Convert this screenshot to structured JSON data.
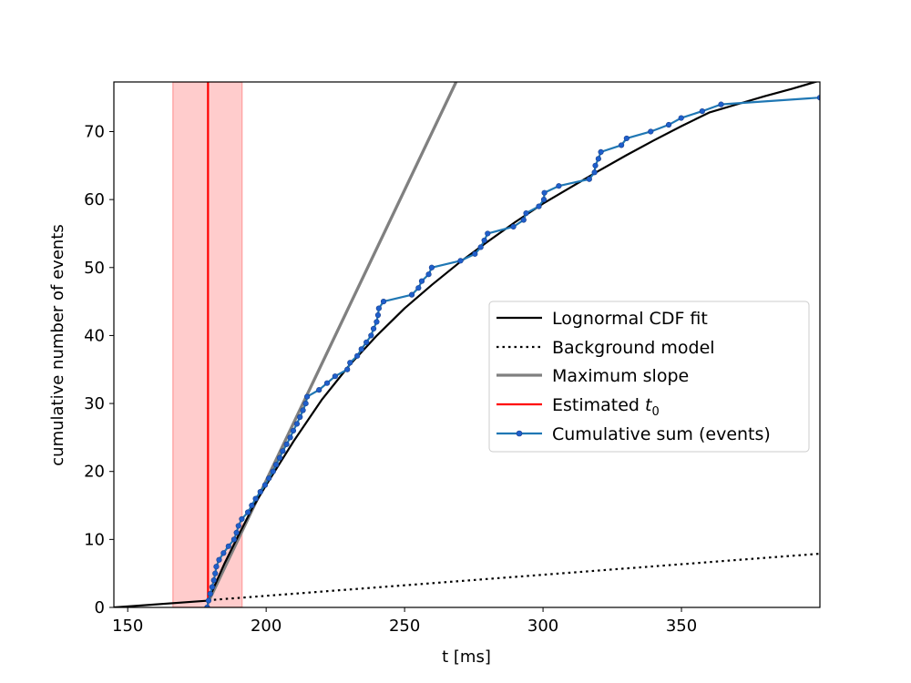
{
  "chart_data": {
    "type": "line",
    "xlabel": "t [ms]",
    "ylabel": "cumulative number of events",
    "xlim": [
      145,
      400
    ],
    "ylim": [
      0,
      77.3
    ],
    "x_ticks": [
      150,
      200,
      250,
      300,
      350
    ],
    "y_ticks": [
      0,
      10,
      20,
      30,
      40,
      50,
      60,
      70
    ],
    "legend_position": "center-right",
    "legend": [
      {
        "label": "Lognormal CDF fit",
        "style": "solid",
        "color": "#000000"
      },
      {
        "label": "Background model",
        "style": "dotted",
        "color": "#000000"
      },
      {
        "label": "Maximum slope",
        "style": "solid-thick",
        "color": "#808080"
      },
      {
        "label": "Estimated ",
        "label_math": "t",
        "label_sub": "0",
        "style": "solid",
        "color": "#ff0000"
      },
      {
        "label": "Cumulative sum (events)",
        "style": "line-marker",
        "color": "#1f77b4"
      }
    ],
    "t0": 179.0,
    "t0_band": [
      166.3,
      191.3
    ],
    "background": {
      "slope": 0.031,
      "intercept_t": 145,
      "start_t": 179
    },
    "max_slope_line": {
      "x": [
        179.0,
        268.6
      ],
      "y": [
        0.7,
        77.3
      ]
    },
    "lognormal_fit": {
      "x": [
        145,
        179,
        185,
        190,
        195,
        200,
        210,
        220,
        230,
        240,
        250,
        260,
        270,
        280,
        290,
        300,
        310,
        320,
        330,
        340,
        350,
        360,
        370,
        380,
        390,
        400
      ],
      "y": [
        0,
        1.0,
        6.5,
        10.6,
        14.6,
        18.0,
        24.5,
        30.5,
        35.6,
        40.0,
        44.0,
        47.5,
        50.8,
        53.8,
        56.7,
        59.4,
        61.8,
        64.2,
        66.5,
        68.7,
        70.8,
        72.8,
        74.0,
        75.2,
        76.3,
        77.5
      ]
    },
    "cumulative_sum": {
      "x": [
        178.7,
        179.2,
        179.8,
        180.5,
        181.1,
        181.6,
        182.0,
        183.0,
        184.6,
        186.4,
        188.4,
        189.3,
        190.0,
        191.2,
        193.4,
        194.8,
        196.2,
        197.9,
        199.6,
        201.0,
        202.5,
        203.6,
        204.9,
        206.0,
        207.4,
        208.7,
        209.8,
        211.1,
        212.2,
        213.3,
        214.3,
        214.8,
        219.1,
        222.0,
        224.9,
        229.3,
        230.3,
        232.9,
        234.4,
        236.2,
        237.9,
        238.8,
        239.9,
        240.4,
        240.7,
        242.4,
        252.6,
        255.0,
        256.2,
        258.7,
        259.8,
        270.2,
        275.4,
        277.5,
        278.8,
        280.0,
        289.3,
        293.0,
        293.9,
        298.5,
        300.3,
        300.5,
        305.7,
        316.7,
        318.6,
        318.9,
        320.0,
        320.9,
        328.3,
        330.2,
        338.9,
        345.4,
        349.9,
        357.5,
        364.3,
        400.0
      ],
      "y": [
        0,
        1,
        2,
        3,
        4,
        5,
        6,
        7,
        8,
        9,
        10,
        11,
        12,
        13,
        14,
        15,
        16,
        17,
        18,
        19,
        20,
        21,
        22,
        23,
        24,
        25,
        26,
        27,
        28,
        29,
        30,
        31,
        32,
        33,
        34,
        35,
        36,
        37,
        38,
        39,
        40,
        41,
        42,
        43,
        44,
        45,
        46,
        47,
        48,
        49,
        50,
        51,
        52,
        53,
        54,
        55,
        56,
        57,
        58,
        59,
        60,
        61,
        62,
        63,
        64,
        65,
        66,
        67,
        68,
        69,
        70,
        71,
        72,
        73,
        74,
        75
      ]
    }
  }
}
